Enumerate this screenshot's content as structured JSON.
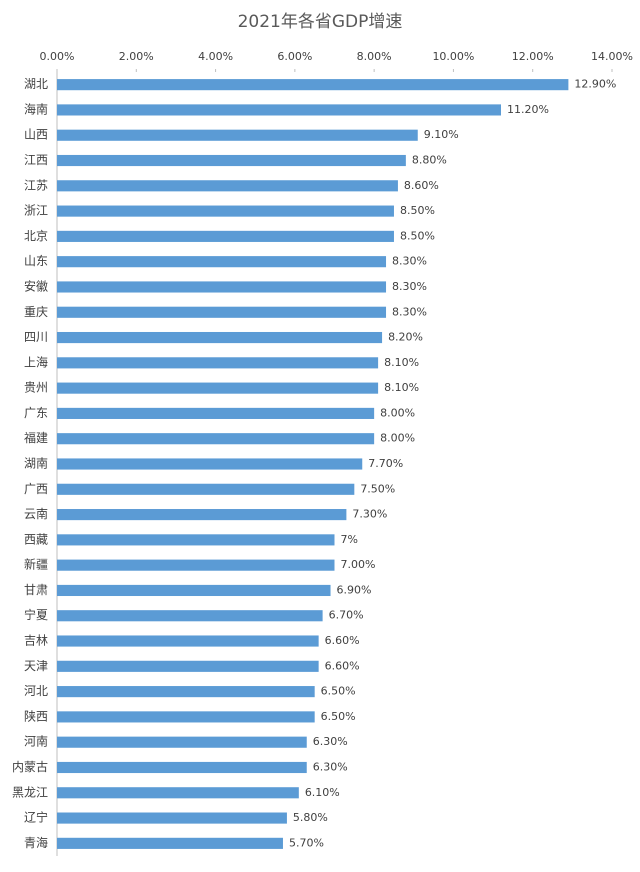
{
  "chart_data": {
    "type": "bar",
    "orientation": "horizontal",
    "title": "2021年各省GDP增速",
    "categories": [
      "湖北",
      "海南",
      "山西",
      "江西",
      "江苏",
      "浙江",
      "北京",
      "山东",
      "安徽",
      "重庆",
      "四川",
      "上海",
      "贵州",
      "广东",
      "福建",
      "湖南",
      "广西",
      "云南",
      "西藏",
      "新疆",
      "甘肃",
      "宁夏",
      "吉林",
      "天津",
      "河北",
      "陕西",
      "河南",
      "内蒙古",
      "黑龙江",
      "辽宁",
      "青海"
    ],
    "values": [
      12.9,
      11.2,
      9.1,
      8.8,
      8.6,
      8.5,
      8.5,
      8.3,
      8.3,
      8.3,
      8.2,
      8.1,
      8.1,
      8.0,
      8.0,
      7.7,
      7.5,
      7.3,
      7,
      7.0,
      6.9,
      6.7,
      6.6,
      6.6,
      6.5,
      6.5,
      6.3,
      6.3,
      6.1,
      5.8,
      5.7
    ],
    "value_labels": [
      "12.90%",
      "11.20%",
      "9.10%",
      "8.80%",
      "8.60%",
      "8.50%",
      "8.50%",
      "8.30%",
      "8.30%",
      "8.30%",
      "8.20%",
      "8.10%",
      "8.10%",
      "8.00%",
      "8.00%",
      "7.70%",
      "7.50%",
      "7.30%",
      "7%",
      "7.00%",
      "6.90%",
      "6.70%",
      "6.60%",
      "6.60%",
      "6.50%",
      "6.50%",
      "6.30%",
      "6.30%",
      "6.10%",
      "5.80%",
      "5.70%"
    ],
    "color": "#5b9bd5",
    "xlim": [
      0,
      14
    ],
    "xticks": [
      {
        "value": 0,
        "label": "0.00%"
      },
      {
        "value": 2,
        "label": "2.00%"
      },
      {
        "value": 4,
        "label": "4.00%"
      },
      {
        "value": 6,
        "label": "6.00%"
      },
      {
        "value": 8,
        "label": "8.00%"
      },
      {
        "value": 10,
        "label": "10.00%"
      },
      {
        "value": 12,
        "label": "12.00%"
      },
      {
        "value": 14,
        "label": "14.00%"
      }
    ],
    "grid": false
  }
}
